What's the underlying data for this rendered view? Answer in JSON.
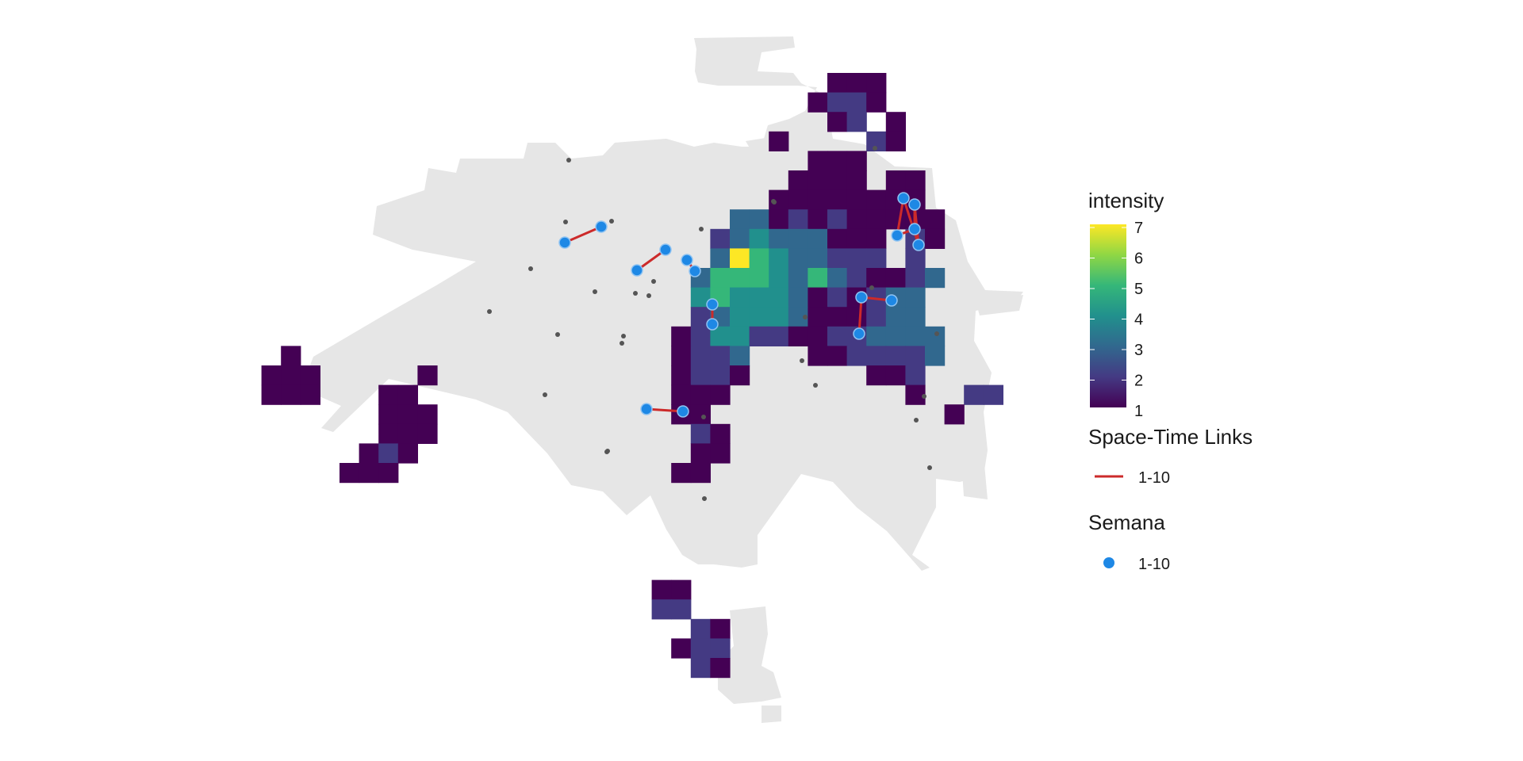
{
  "colors": {
    "land": "#e6e6e6",
    "link": "#cc2a2a",
    "point": "#1e88e5",
    "point_outline": "#8fc3f2",
    "event": "#555555",
    "viridis": [
      "#440154",
      "#443a83",
      "#31688e",
      "#21908d",
      "#35b779",
      "#8fd744",
      "#fde725"
    ]
  },
  "legend": {
    "intensity_title": "intensity",
    "intensity_ticks": [
      "7",
      "6",
      "5",
      "4",
      "3",
      "2",
      "1"
    ],
    "links_title": "Space-Time Links",
    "links_label": "1-10",
    "points_title": "Semana",
    "points_label": "1-10"
  },
  "chart_data": {
    "type": "heatmap",
    "description_fields": "grid cells with intensity values 1-7 over a city outline; space-time links between weekly points",
    "intensity_range": [
      1,
      7
    ],
    "cells": [
      [
        10,
        0,
        1
      ],
      [
        11,
        0,
        1
      ],
      [
        12,
        0,
        1
      ],
      [
        9,
        1,
        1
      ],
      [
        10,
        1,
        2
      ],
      [
        11,
        1,
        2
      ],
      [
        12,
        1,
        1
      ],
      [
        10,
        2,
        1
      ],
      [
        11,
        2,
        2
      ],
      [
        13,
        2,
        1
      ],
      [
        7,
        3,
        1
      ],
      [
        12,
        3,
        2
      ],
      [
        13,
        3,
        1
      ],
      [
        9,
        4,
        1
      ],
      [
        10,
        4,
        1
      ],
      [
        11,
        4,
        1
      ],
      [
        8,
        5,
        1
      ],
      [
        9,
        5,
        1
      ],
      [
        10,
        5,
        1
      ],
      [
        11,
        5,
        1
      ],
      [
        13,
        5,
        1
      ],
      [
        14,
        5,
        1
      ],
      [
        7,
        6,
        1
      ],
      [
        8,
        6,
        1
      ],
      [
        9,
        6,
        1
      ],
      [
        10,
        6,
        1
      ],
      [
        11,
        6,
        1
      ],
      [
        12,
        6,
        1
      ],
      [
        13,
        6,
        1
      ],
      [
        14,
        6,
        1
      ],
      [
        5,
        7,
        3
      ],
      [
        6,
        7,
        3
      ],
      [
        7,
        7,
        1
      ],
      [
        8,
        7,
        2
      ],
      [
        9,
        7,
        1
      ],
      [
        10,
        7,
        2
      ],
      [
        11,
        7,
        1
      ],
      [
        12,
        7,
        1
      ],
      [
        13,
        7,
        1
      ],
      [
        14,
        7,
        1
      ],
      [
        15,
        7,
        1
      ],
      [
        4,
        8,
        2
      ],
      [
        5,
        8,
        3
      ],
      [
        6,
        8,
        4
      ],
      [
        7,
        8,
        3
      ],
      [
        8,
        8,
        3
      ],
      [
        9,
        8,
        3
      ],
      [
        10,
        8,
        1
      ],
      [
        11,
        8,
        1
      ],
      [
        12,
        8,
        1
      ],
      [
        14,
        8,
        2
      ],
      [
        15,
        8,
        1
      ],
      [
        4,
        9,
        3
      ],
      [
        5,
        9,
        7
      ],
      [
        6,
        9,
        5
      ],
      [
        7,
        9,
        4
      ],
      [
        8,
        9,
        3
      ],
      [
        9,
        9,
        3
      ],
      [
        10,
        9,
        2
      ],
      [
        11,
        9,
        2
      ],
      [
        12,
        9,
        2
      ],
      [
        14,
        9,
        2
      ],
      [
        3,
        10,
        3
      ],
      [
        4,
        10,
        5
      ],
      [
        5,
        10,
        5
      ],
      [
        6,
        10,
        5
      ],
      [
        7,
        10,
        4
      ],
      [
        8,
        10,
        3
      ],
      [
        9,
        10,
        5
      ],
      [
        10,
        10,
        3
      ],
      [
        11,
        10,
        2
      ],
      [
        12,
        10,
        1
      ],
      [
        13,
        10,
        1
      ],
      [
        14,
        10,
        2
      ],
      [
        15,
        10,
        3
      ],
      [
        3,
        11,
        4
      ],
      [
        4,
        11,
        5
      ],
      [
        5,
        11,
        4
      ],
      [
        6,
        11,
        4
      ],
      [
        7,
        11,
        4
      ],
      [
        8,
        11,
        3
      ],
      [
        9,
        11,
        1
      ],
      [
        10,
        11,
        2
      ],
      [
        11,
        11,
        1
      ],
      [
        12,
        11,
        2
      ],
      [
        13,
        11,
        3
      ],
      [
        14,
        11,
        3
      ],
      [
        3,
        12,
        2
      ],
      [
        4,
        12,
        3
      ],
      [
        5,
        12,
        4
      ],
      [
        6,
        12,
        4
      ],
      [
        7,
        12,
        4
      ],
      [
        8,
        12,
        3
      ],
      [
        9,
        12,
        1
      ],
      [
        10,
        12,
        1
      ],
      [
        11,
        12,
        1
      ],
      [
        12,
        12,
        2
      ],
      [
        13,
        12,
        3
      ],
      [
        14,
        12,
        3
      ],
      [
        2,
        13,
        1
      ],
      [
        3,
        13,
        2
      ],
      [
        4,
        13,
        4
      ],
      [
        5,
        13,
        4
      ],
      [
        6,
        13,
        2
      ],
      [
        7,
        13,
        2
      ],
      [
        8,
        13,
        1
      ],
      [
        9,
        13,
        1
      ],
      [
        10,
        13,
        2
      ],
      [
        11,
        13,
        2
      ],
      [
        12,
        13,
        3
      ],
      [
        13,
        13,
        3
      ],
      [
        14,
        13,
        3
      ],
      [
        15,
        13,
        3
      ],
      [
        2,
        14,
        1
      ],
      [
        3,
        14,
        2
      ],
      [
        4,
        14,
        2
      ],
      [
        5,
        14,
        3
      ],
      [
        9,
        14,
        1
      ],
      [
        10,
        14,
        1
      ],
      [
        11,
        14,
        2
      ],
      [
        12,
        14,
        2
      ],
      [
        13,
        14,
        2
      ],
      [
        14,
        14,
        2
      ],
      [
        15,
        14,
        3
      ],
      [
        2,
        15,
        1
      ],
      [
        3,
        15,
        2
      ],
      [
        4,
        15,
        2
      ],
      [
        5,
        15,
        1
      ],
      [
        12,
        15,
        1
      ],
      [
        13,
        15,
        1
      ],
      [
        14,
        15,
        2
      ],
      [
        2,
        16,
        1
      ],
      [
        3,
        16,
        1
      ],
      [
        4,
        16,
        1
      ],
      [
        14,
        16,
        1
      ],
      [
        17,
        16,
        2
      ],
      [
        18,
        16,
        2
      ],
      [
        2,
        17,
        1
      ],
      [
        3,
        17,
        1
      ],
      [
        16,
        17,
        1
      ],
      [
        3,
        18,
        2
      ],
      [
        4,
        18,
        1
      ],
      [
        3,
        19,
        1
      ],
      [
        4,
        19,
        1
      ],
      [
        2,
        20,
        1
      ],
      [
        3,
        20,
        1
      ]
    ],
    "extra_cells": [
      [
        -18,
        14,
        1
      ],
      [
        -19,
        15,
        1
      ],
      [
        -18,
        15,
        1
      ],
      [
        -17,
        15,
        1
      ],
      [
        -19,
        16,
        1
      ],
      [
        -18,
        16,
        1
      ],
      [
        -17,
        16,
        1
      ],
      [
        -11,
        15,
        1
      ],
      [
        -13,
        16,
        1
      ],
      [
        -12,
        16,
        1
      ],
      [
        -13,
        17,
        1
      ],
      [
        -12,
        17,
        1
      ],
      [
        -11,
        17,
        1
      ],
      [
        -13,
        18,
        1
      ],
      [
        -12,
        18,
        1
      ],
      [
        -11,
        18,
        1
      ],
      [
        -14,
        19,
        1
      ],
      [
        -13,
        19,
        2
      ],
      [
        -12,
        19,
        1
      ],
      [
        -15,
        20,
        1
      ],
      [
        -14,
        20,
        1
      ],
      [
        -13,
        20,
        1
      ],
      [
        1,
        26,
        1
      ],
      [
        2,
        26,
        1
      ],
      [
        1,
        27,
        2
      ],
      [
        2,
        27,
        2
      ],
      [
        3,
        28,
        2
      ],
      [
        4,
        28,
        1
      ],
      [
        2,
        29,
        1
      ],
      [
        3,
        29,
        2
      ],
      [
        4,
        29,
        2
      ],
      [
        3,
        30,
        2
      ],
      [
        4,
        30,
        1
      ]
    ],
    "links": [
      [
        [
          0,
          0
        ],
        [
          1,
          0
        ]
      ],
      [
        [
          2,
          0
        ],
        [
          3,
          0
        ]
      ],
      [
        [
          4,
          0
        ],
        [
          5,
          0
        ]
      ],
      [
        [
          6,
          0
        ],
        [
          7,
          0
        ]
      ],
      [
        [
          8,
          0
        ],
        [
          9,
          0
        ]
      ],
      [
        [
          10,
          0
        ],
        [
          11,
          0
        ],
        [
          12,
          0
        ]
      ],
      [
        [
          13,
          0
        ],
        [
          14,
          0
        ],
        [
          15,
          0
        ],
        [
          16,
          0
        ],
        [
          17,
          0
        ],
        [
          13,
          0
        ]
      ]
    ],
    "legend_position": "right"
  }
}
